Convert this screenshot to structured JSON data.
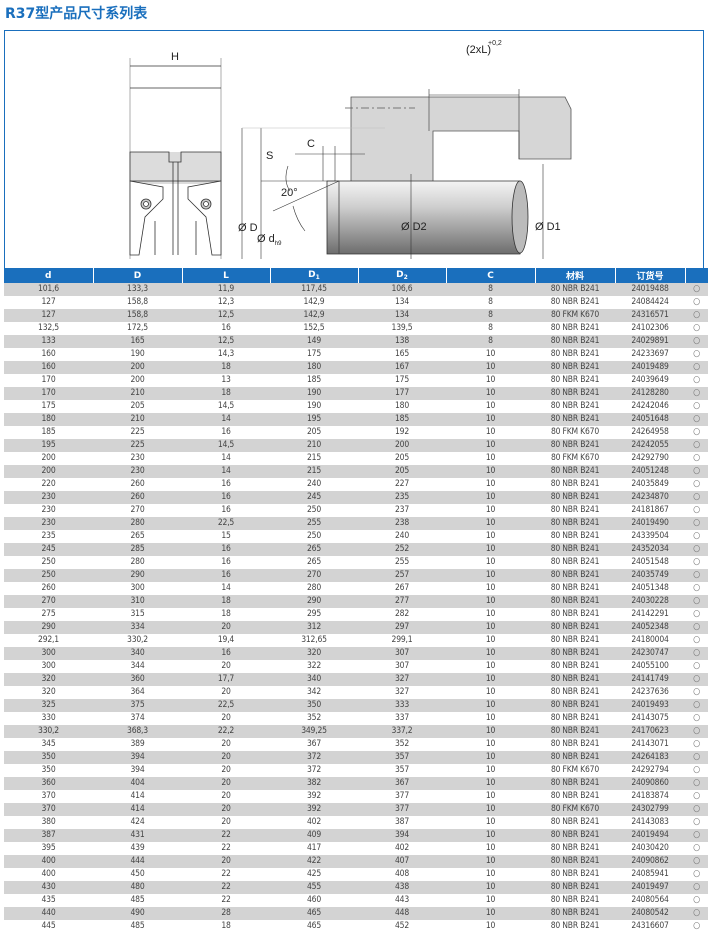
{
  "title": "R37型产品尺寸系列表",
  "drawing": {
    "label_H": "H",
    "label_2xL": "(2xL)",
    "label_tol": "+0,2",
    "label_S": "S",
    "label_C": "C",
    "label_angle": "20°",
    "label_D": "Ø D",
    "label_d": "Ø d",
    "label_d_sub": "h9",
    "label_D2": "Ø D2",
    "label_D1": "Ø D1"
  },
  "table": {
    "headers": [
      {
        "main": "d",
        "sub": ""
      },
      {
        "main": "D",
        "sub": ""
      },
      {
        "main": "L",
        "sub": ""
      },
      {
        "main": "D",
        "sub": "1"
      },
      {
        "main": "D",
        "sub": "2"
      },
      {
        "main": "C",
        "sub": ""
      },
      {
        "main": "材料",
        "sub": ""
      },
      {
        "main": "订货号",
        "sub": ""
      },
      {
        "main": "",
        "sub": ""
      }
    ],
    "marker": "○",
    "rows": [
      [
        "101,6",
        "133,3",
        "11,9",
        "117,45",
        "106,6",
        "8",
        "80 NBR B241",
        "24019488"
      ],
      [
        "127",
        "158,8",
        "12,3",
        "142,9",
        "134",
        "8",
        "80 NBR B241",
        "24084424"
      ],
      [
        "127",
        "158,8",
        "12,5",
        "142,9",
        "134",
        "8",
        "80 FKM K670",
        "24316571"
      ],
      [
        "132,5",
        "172,5",
        "16",
        "152,5",
        "139,5",
        "8",
        "80 NBR B241",
        "24102306"
      ],
      [
        "133",
        "165",
        "12,5",
        "149",
        "138",
        "8",
        "80 NBR B241",
        "24029891"
      ],
      [
        "160",
        "190",
        "14,3",
        "175",
        "165",
        "10",
        "80 NBR B241",
        "24233697"
      ],
      [
        "160",
        "200",
        "18",
        "180",
        "167",
        "10",
        "80 NBR B241",
        "24019489"
      ],
      [
        "170",
        "200",
        "13",
        "185",
        "175",
        "10",
        "80 NBR B241",
        "24039649"
      ],
      [
        "170",
        "210",
        "18",
        "190",
        "177",
        "10",
        "80 NBR B241",
        "24128280"
      ],
      [
        "175",
        "205",
        "14,5",
        "190",
        "180",
        "10",
        "80 NBR B241",
        "24242046"
      ],
      [
        "180",
        "210",
        "14",
        "195",
        "185",
        "10",
        "80 NBR B241",
        "24051648"
      ],
      [
        "185",
        "225",
        "16",
        "205",
        "192",
        "10",
        "80 FKM K670",
        "24264958"
      ],
      [
        "195",
        "225",
        "14,5",
        "210",
        "200",
        "10",
        "80 NBR B241",
        "24242055"
      ],
      [
        "200",
        "230",
        "14",
        "215",
        "205",
        "10",
        "80 FKM K670",
        "24292790"
      ],
      [
        "200",
        "230",
        "14",
        "215",
        "205",
        "10",
        "80 NBR B241",
        "24051248"
      ],
      [
        "220",
        "260",
        "16",
        "240",
        "227",
        "10",
        "80 NBR B241",
        "24035849"
      ],
      [
        "230",
        "260",
        "16",
        "245",
        "235",
        "10",
        "80 NBR B241",
        "24234870"
      ],
      [
        "230",
        "270",
        "16",
        "250",
        "237",
        "10",
        "80 NBR B241",
        "24181867"
      ],
      [
        "230",
        "280",
        "22,5",
        "255",
        "238",
        "10",
        "80 NBR B241",
        "24019490"
      ],
      [
        "235",
        "265",
        "15",
        "250",
        "240",
        "10",
        "80 NBR B241",
        "24339504"
      ],
      [
        "245",
        "285",
        "16",
        "265",
        "252",
        "10",
        "80 NBR B241",
        "24352034"
      ],
      [
        "250",
        "280",
        "16",
        "265",
        "255",
        "10",
        "80 NBR B241",
        "24051548"
      ],
      [
        "250",
        "290",
        "16",
        "270",
        "257",
        "10",
        "80 NBR B241",
        "24035749"
      ],
      [
        "260",
        "300",
        "14",
        "280",
        "267",
        "10",
        "80 NBR B241",
        "24051348"
      ],
      [
        "270",
        "310",
        "18",
        "290",
        "277",
        "10",
        "80 NBR B241",
        "24030228"
      ],
      [
        "275",
        "315",
        "18",
        "295",
        "282",
        "10",
        "80 NBR B241",
        "24142291"
      ],
      [
        "290",
        "334",
        "20",
        "312",
        "297",
        "10",
        "80 NBR B241",
        "24052348"
      ],
      [
        "292,1",
        "330,2",
        "19,4",
        "312,65",
        "299,1",
        "10",
        "80 NBR B241",
        "24180004"
      ],
      [
        "300",
        "340",
        "16",
        "320",
        "307",
        "10",
        "80 NBR B241",
        "24230747"
      ],
      [
        "300",
        "344",
        "20",
        "322",
        "307",
        "10",
        "80 NBR B241",
        "24055100"
      ],
      [
        "320",
        "360",
        "17,7",
        "340",
        "327",
        "10",
        "80 NBR B241",
        "24141749"
      ],
      [
        "320",
        "364",
        "20",
        "342",
        "327",
        "10",
        "80 NBR B241",
        "24237636"
      ],
      [
        "325",
        "375",
        "22,5",
        "350",
        "333",
        "10",
        "80 NBR B241",
        "24019493"
      ],
      [
        "330",
        "374",
        "20",
        "352",
        "337",
        "10",
        "80 NBR B241",
        "24143075"
      ],
      [
        "330,2",
        "368,3",
        "22,2",
        "349,25",
        "337,2",
        "10",
        "80 NBR B241",
        "24170623"
      ],
      [
        "345",
        "389",
        "20",
        "367",
        "352",
        "10",
        "80 NBR B241",
        "24143071"
      ],
      [
        "350",
        "394",
        "20",
        "372",
        "357",
        "10",
        "80 NBR B241",
        "24264183"
      ],
      [
        "350",
        "394",
        "20",
        "372",
        "357",
        "10",
        "80 FKM K670",
        "24292794"
      ],
      [
        "360",
        "404",
        "20",
        "382",
        "367",
        "10",
        "80 NBR B241",
        "24090860"
      ],
      [
        "370",
        "414",
        "20",
        "392",
        "377",
        "10",
        "80 NBR B241",
        "24183874"
      ],
      [
        "370",
        "414",
        "20",
        "392",
        "377",
        "10",
        "80 FKM K670",
        "24302799"
      ],
      [
        "380",
        "424",
        "20",
        "402",
        "387",
        "10",
        "80 NBR B241",
        "24143083"
      ],
      [
        "387",
        "431",
        "22",
        "409",
        "394",
        "10",
        "80 NBR B241",
        "24019494"
      ],
      [
        "395",
        "439",
        "22",
        "417",
        "402",
        "10",
        "80 NBR B241",
        "24030420"
      ],
      [
        "400",
        "444",
        "20",
        "422",
        "407",
        "10",
        "80 NBR B241",
        "24090862"
      ],
      [
        "400",
        "450",
        "22",
        "425",
        "408",
        "10",
        "80 NBR B241",
        "24085941"
      ],
      [
        "430",
        "480",
        "22",
        "455",
        "438",
        "10",
        "80 NBR B241",
        "24019497"
      ],
      [
        "435",
        "485",
        "22",
        "460",
        "443",
        "10",
        "80 NBR B241",
        "24080564"
      ],
      [
        "440",
        "490",
        "28",
        "465",
        "448",
        "10",
        "80 NBR B241",
        "24080542"
      ],
      [
        "445",
        "485",
        "18",
        "465",
        "452",
        "10",
        "80 NBR B241",
        "24316607"
      ]
    ]
  },
  "colors": {
    "accent": "#1a6fbd",
    "row_alt": "#d3d3d3"
  }
}
